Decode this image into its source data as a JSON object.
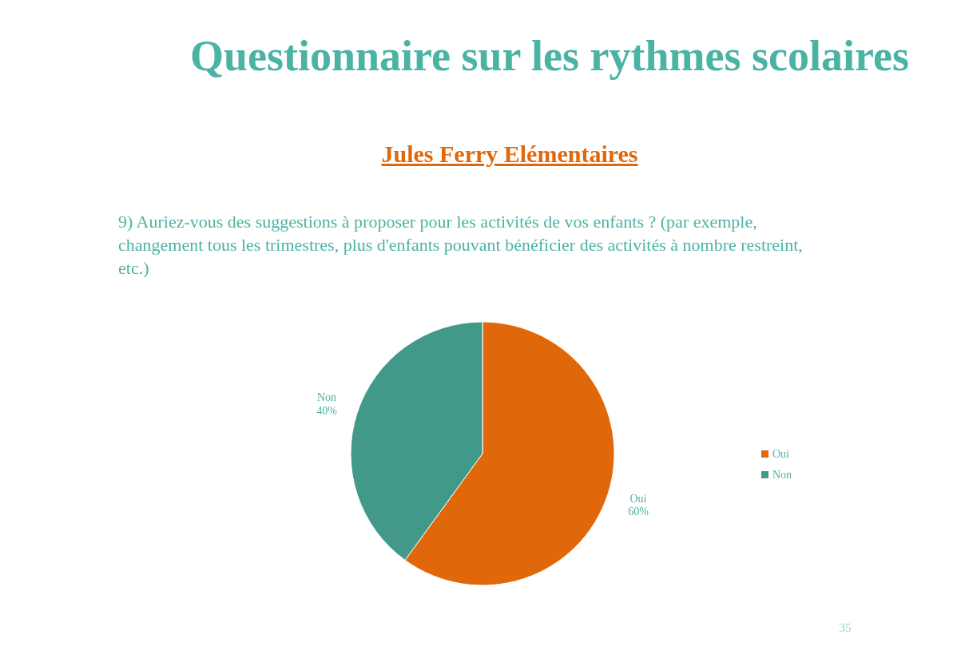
{
  "chart_data": {
    "type": "pie",
    "title": "Questionnaire sur les rythmes scolaires",
    "subtitle": "Jules Ferry Elémentaires",
    "annotations": [
      "9) Auriez-vous des suggestions à proposer pour les activités de vos enfants ? (par exemple, changement tous les trimestres, plus d'enfants pouvant bénéficier des activités à nombre restreint, etc.)",
      "35"
    ],
    "categories": [
      "Oui",
      "Non"
    ],
    "values": [
      60,
      40
    ],
    "colors": [
      "#e0680a",
      "#42998a"
    ],
    "value_labels": [
      "60%",
      "40%"
    ],
    "legend": "right"
  }
}
